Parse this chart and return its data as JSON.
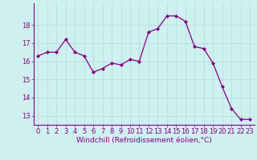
{
  "x": [
    0,
    1,
    2,
    3,
    4,
    5,
    6,
    7,
    8,
    9,
    10,
    11,
    12,
    13,
    14,
    15,
    16,
    17,
    18,
    19,
    20,
    21,
    22,
    23
  ],
  "y": [
    16.3,
    16.5,
    16.5,
    17.2,
    16.5,
    16.3,
    15.4,
    15.6,
    15.9,
    15.8,
    16.1,
    16.0,
    17.6,
    17.8,
    18.5,
    18.5,
    18.2,
    16.8,
    16.7,
    15.9,
    14.6,
    13.4,
    12.8,
    12.8
  ],
  "line_color": "#800080",
  "marker": "D",
  "marker_size": 2.0,
  "line_width": 0.9,
  "bg_color": "#cff0f0",
  "grid_color": "#aadddd",
  "xlabel": "Windchill (Refroidissement éolien,°C)",
  "xlabel_fontsize": 6.5,
  "tick_fontsize": 6.0,
  "ylim": [
    12.5,
    19.2
  ],
  "xlim": [
    -0.5,
    23.5
  ],
  "yticks": [
    13,
    14,
    15,
    16,
    17,
    18
  ],
  "xticks": [
    0,
    1,
    2,
    3,
    4,
    5,
    6,
    7,
    8,
    9,
    10,
    11,
    12,
    13,
    14,
    15,
    16,
    17,
    18,
    19,
    20,
    21,
    22,
    23
  ]
}
